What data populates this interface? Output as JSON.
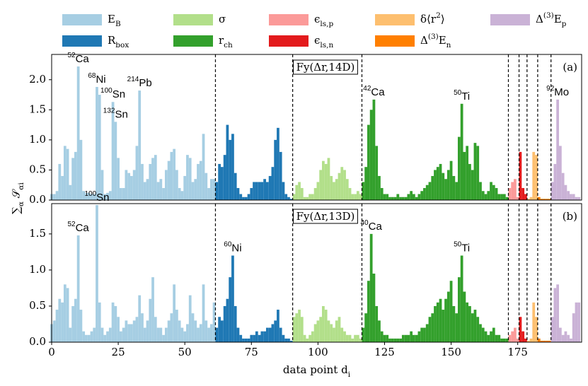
{
  "chart_data": [
    {
      "type": "bar",
      "title": "Fy(Δr,14D)",
      "panel_label": "(a)",
      "ylabel": "∑_{α} 𝒮_{αi}",
      "legend": true,
      "xlim": [
        0,
        199
      ],
      "ylim": [
        0,
        2.42
      ],
      "yticks": [
        {
          "value": 0,
          "label": "0.0"
        },
        {
          "value": 0.5,
          "label": "0.5"
        },
        {
          "value": 1,
          "label": "1.0"
        },
        {
          "value": 1.5,
          "label": "1.5"
        },
        {
          "value": 2,
          "label": "2.0"
        }
      ],
      "vlines": [
        61.5,
        90.5,
        116.5,
        171.5,
        175.5,
        178.5,
        182.5,
        187.5
      ],
      "series": [
        {
          "name": "E_{B}",
          "color": "#a6cee3",
          "x": [
            0,
            1,
            2,
            3,
            4,
            5,
            6,
            7,
            8,
            9,
            10,
            11,
            12,
            13,
            14,
            15,
            16,
            17,
            18,
            19,
            20,
            21,
            22,
            23,
            24,
            25,
            26,
            27,
            28,
            29,
            30,
            31,
            32,
            33,
            34,
            35,
            36,
            37,
            38,
            39,
            40,
            41,
            42,
            43,
            44,
            45,
            46,
            47,
            48,
            49,
            50,
            51,
            52,
            53,
            54,
            55,
            56,
            57,
            58,
            59,
            60,
            61
          ],
          "values": [
            0.1,
            0.1,
            0.15,
            0.6,
            0.4,
            0.9,
            0.85,
            0.25,
            0.7,
            0.8,
            2.22,
            1.0,
            0.15,
            0.12,
            0.12,
            0.1,
            0.1,
            1.88,
            1.75,
            0.5,
            0.1,
            0.12,
            0.15,
            1.63,
            1.3,
            0.7,
            0.2,
            0.2,
            0.5,
            0.45,
            0.4,
            0.5,
            0.9,
            1.82,
            0.6,
            0.3,
            0.35,
            0.6,
            0.7,
            0.75,
            0.3,
            0.35,
            0.2,
            0.5,
            0.65,
            0.8,
            0.85,
            0.5,
            0.2,
            0.15,
            0.4,
            0.75,
            0.7,
            0.3,
            0.35,
            0.6,
            0.65,
            1.1,
            0.45,
            0.2,
            0.35,
            0.35
          ]
        },
        {
          "name": "R_{box}",
          "color": "#1f78b4",
          "x": [
            62,
            63,
            64,
            65,
            66,
            67,
            68,
            69,
            70,
            71,
            72,
            73,
            74,
            75,
            76,
            77,
            78,
            79,
            80,
            81,
            82,
            83,
            84,
            85,
            86,
            87,
            88,
            89,
            90
          ],
          "values": [
            0.3,
            0.6,
            0.55,
            0.75,
            1.25,
            1.0,
            1.1,
            0.45,
            0.2,
            0.1,
            0.05,
            0.05,
            0.1,
            0.2,
            0.3,
            0.3,
            0.3,
            0.3,
            0.35,
            0.3,
            0.4,
            0.55,
            1.0,
            1.2,
            0.8,
            0.3,
            0.1,
            0.05,
            0.02
          ]
        },
        {
          "name": "σ",
          "color": "#b2df8a",
          "x": [
            91,
            92,
            93,
            94,
            95,
            96,
            97,
            98,
            99,
            100,
            101,
            102,
            103,
            104,
            105,
            106,
            107,
            108,
            109,
            110,
            111,
            112,
            113,
            114,
            115,
            116
          ],
          "values": [
            0.1,
            0.25,
            0.3,
            0.2,
            0.05,
            0.05,
            0.1,
            0.1,
            0.2,
            0.3,
            0.5,
            0.65,
            0.6,
            0.7,
            0.4,
            0.3,
            0.35,
            0.45,
            0.55,
            0.5,
            0.35,
            0.2,
            0.1,
            0.1,
            0.15,
            0.1
          ]
        },
        {
          "name": "r_{ch}",
          "color": "#33a02c",
          "x": [
            117,
            118,
            119,
            120,
            121,
            122,
            123,
            124,
            125,
            126,
            127,
            128,
            129,
            130,
            131,
            132,
            133,
            134,
            135,
            136,
            137,
            138,
            139,
            140,
            141,
            142,
            143,
            144,
            145,
            146,
            147,
            148,
            149,
            150,
            151,
            152,
            153,
            154,
            155,
            156,
            157,
            158,
            159,
            160,
            161,
            162,
            163,
            164,
            165,
            166,
            167,
            168,
            169,
            170,
            171
          ],
          "values": [
            0.3,
            0.55,
            1.25,
            1.5,
            1.67,
            0.9,
            0.4,
            0.2,
            0.1,
            0.1,
            0.05,
            0.05,
            0.05,
            0.1,
            0.05,
            0.05,
            0.05,
            0.1,
            0.15,
            0.1,
            0.05,
            0.1,
            0.15,
            0.2,
            0.25,
            0.3,
            0.4,
            0.5,
            0.55,
            0.6,
            0.45,
            0.35,
            0.5,
            0.65,
            0.4,
            0.3,
            1.05,
            1.6,
            0.8,
            0.9,
            0.6,
            0.5,
            0.95,
            0.9,
            0.3,
            0.15,
            0.1,
            0.15,
            0.3,
            0.25,
            0.2,
            0.1,
            0.1,
            0.1,
            0.05
          ]
        },
        {
          "name": "ϵ_{ls,p}",
          "color": "#fb9a99",
          "x": [
            172,
            173,
            174,
            175
          ],
          "values": [
            0.2,
            0.3,
            0.35,
            0.05
          ]
        },
        {
          "name": "ϵ_{ls,n}",
          "color": "#e31a1c",
          "x": [
            176,
            177,
            178
          ],
          "values": [
            0.8,
            0.2,
            0.1
          ]
        },
        {
          "name": "δ⟨r^{2}⟩",
          "color": "#fdbf6f",
          "x": [
            179,
            180,
            181,
            182
          ],
          "values": [
            0.02,
            0.05,
            0.8,
            0.75
          ]
        },
        {
          "name": "Δ^{(3)}E_{n}",
          "color": "#ff7f00",
          "x": [
            183,
            184,
            185,
            186,
            187
          ],
          "values": [
            0.05,
            0.02,
            0.02,
            0.02,
            0.02
          ]
        },
        {
          "name": "Δ^{(3)}E_{p}",
          "color": "#cab2d6",
          "x": [
            188,
            189,
            190,
            191,
            192,
            193,
            194,
            195,
            196,
            197,
            198
          ],
          "values": [
            0.3,
            0.6,
            1.67,
            0.9,
            0.45,
            0.25,
            0.15,
            0.1,
            0.1,
            0.05,
            0.05
          ]
        }
      ],
      "annotations": [
        {
          "mass": "52",
          "element": "Ca",
          "x": 10
        },
        {
          "mass": "68",
          "element": "Ni",
          "x": 17
        },
        {
          "mass": "100",
          "element": "Sn",
          "x": 23
        },
        {
          "mass": "132",
          "element": "Sn",
          "x": 24
        },
        {
          "mass": "214",
          "element": "Pb",
          "x": 33
        },
        {
          "mass": "42",
          "element": "Ca",
          "x": 121
        },
        {
          "mass": "50",
          "element": "Ti",
          "x": 154
        },
        {
          "mass": "92",
          "element": "Mo",
          "x": 190
        }
      ]
    },
    {
      "type": "bar",
      "title": "Fy(Δr,13D)",
      "panel_label": "(b)",
      "xlabel": "data point d_{i}",
      "xlim": [
        0,
        199
      ],
      "ylim": [
        0,
        1.92
      ],
      "xticks": [
        0,
        25,
        50,
        75,
        100,
        125,
        150,
        175
      ],
      "yticks": [
        {
          "value": 0,
          "label": "0.0"
        },
        {
          "value": 0.5,
          "label": "0.5"
        },
        {
          "value": 1,
          "label": "1.0"
        },
        {
          "value": 1.5,
          "label": "1.5"
        }
      ],
      "vlines": [
        61.5,
        90.5,
        116.5,
        171.5,
        175.5,
        178.5,
        182.5,
        187.5
      ],
      "series": [
        {
          "name": "E_{B}",
          "color": "#a6cee3",
          "x": [
            0,
            1,
            2,
            3,
            4,
            5,
            6,
            7,
            8,
            9,
            10,
            11,
            12,
            13,
            14,
            15,
            16,
            17,
            18,
            19,
            20,
            21,
            22,
            23,
            24,
            25,
            26,
            27,
            28,
            29,
            30,
            31,
            32,
            33,
            34,
            35,
            36,
            37,
            38,
            39,
            40,
            41,
            42,
            43,
            44,
            45,
            46,
            47,
            48,
            49,
            50,
            51,
            52,
            53,
            54,
            55,
            56,
            57,
            58,
            59,
            60,
            61
          ],
          "values": [
            0.25,
            0.3,
            0.45,
            0.6,
            0.55,
            0.8,
            0.75,
            0.2,
            0.5,
            0.6,
            1.48,
            0.45,
            0.15,
            0.1,
            0.1,
            0.15,
            0.2,
            1.9,
            0.55,
            0.2,
            0.1,
            0.15,
            0.2,
            0.55,
            0.5,
            0.35,
            0.15,
            0.2,
            0.3,
            0.25,
            0.25,
            0.3,
            0.35,
            0.65,
            0.4,
            0.2,
            0.3,
            0.6,
            0.9,
            0.35,
            0.2,
            0.2,
            0.1,
            0.2,
            0.3,
            0.4,
            0.8,
            0.45,
            0.3,
            0.2,
            0.15,
            0.25,
            0.65,
            0.4,
            0.3,
            0.2,
            0.25,
            0.8,
            0.3,
            0.2,
            0.25,
            0.55
          ]
        },
        {
          "name": "R_{box}",
          "color": "#1f78b4",
          "x": [
            62,
            63,
            64,
            65,
            66,
            67,
            68,
            69,
            70,
            71,
            72,
            73,
            74,
            75,
            76,
            77,
            78,
            79,
            80,
            81,
            82,
            83,
            84,
            85,
            86,
            87,
            88,
            89,
            90
          ],
          "values": [
            0.2,
            0.35,
            0.3,
            0.5,
            0.6,
            0.9,
            1.2,
            0.5,
            0.2,
            0.1,
            0.05,
            0.05,
            0.05,
            0.1,
            0.1,
            0.15,
            0.1,
            0.15,
            0.15,
            0.2,
            0.2,
            0.25,
            0.3,
            0.45,
            0.2,
            0.1,
            0.05,
            0.05,
            0.02
          ]
        },
        {
          "name": "σ",
          "color": "#b2df8a",
          "x": [
            91,
            92,
            93,
            94,
            95,
            96,
            97,
            98,
            99,
            100,
            101,
            102,
            103,
            104,
            105,
            106,
            107,
            108,
            109,
            110,
            111,
            112,
            113,
            114,
            115,
            116
          ],
          "values": [
            0.35,
            0.4,
            0.45,
            0.35,
            0.1,
            0.05,
            0.1,
            0.15,
            0.25,
            0.3,
            0.35,
            0.5,
            0.45,
            0.3,
            0.25,
            0.2,
            0.3,
            0.35,
            0.2,
            0.15,
            0.1,
            0.1,
            0.05,
            0.1,
            0.1,
            0.05
          ]
        },
        {
          "name": "r_{ch}",
          "color": "#33a02c",
          "x": [
            117,
            118,
            119,
            120,
            121,
            122,
            123,
            124,
            125,
            126,
            127,
            128,
            129,
            130,
            131,
            132,
            133,
            134,
            135,
            136,
            137,
            138,
            139,
            140,
            141,
            142,
            143,
            144,
            145,
            146,
            147,
            148,
            149,
            150,
            151,
            152,
            153,
            154,
            155,
            156,
            157,
            158,
            159,
            160,
            161,
            162,
            163,
            164,
            165,
            166,
            167,
            168,
            169,
            170,
            171
          ],
          "values": [
            0.2,
            0.4,
            0.85,
            1.5,
            0.95,
            0.5,
            0.3,
            0.15,
            0.1,
            0.1,
            0.05,
            0.05,
            0.05,
            0.05,
            0.05,
            0.1,
            0.1,
            0.1,
            0.15,
            0.1,
            0.1,
            0.15,
            0.2,
            0.2,
            0.25,
            0.35,
            0.4,
            0.5,
            0.55,
            0.6,
            0.45,
            0.6,
            0.7,
            0.85,
            0.5,
            0.4,
            0.9,
            1.2,
            0.7,
            0.55,
            0.5,
            0.4,
            0.45,
            0.35,
            0.25,
            0.2,
            0.15,
            0.1,
            0.15,
            0.2,
            0.1,
            0.1,
            0.05,
            0.05,
            0.05
          ]
        },
        {
          "name": "ϵ_{ls,p}",
          "color": "#fb9a99",
          "x": [
            172,
            173,
            174,
            175
          ],
          "values": [
            0.1,
            0.15,
            0.2,
            0.05
          ]
        },
        {
          "name": "ϵ_{ls,n}",
          "color": "#e31a1c",
          "x": [
            176,
            177,
            178
          ],
          "values": [
            0.35,
            0.15,
            0.05
          ]
        },
        {
          "name": "δ⟨r^{2}⟩",
          "color": "#fdbf6f",
          "x": [
            179,
            180,
            181,
            182
          ],
          "values": [
            0.02,
            0.05,
            0.55,
            0.35
          ]
        },
        {
          "name": "Δ^{(3)}E_{n}",
          "color": "#ff7f00",
          "x": [
            183,
            184,
            185,
            186,
            187
          ],
          "values": [
            0.05,
            0.02,
            0.02,
            0.02,
            0.02
          ]
        },
        {
          "name": "Δ^{(3)}E_{p}",
          "color": "#cab2d6",
          "x": [
            188,
            189,
            190,
            191,
            192,
            193,
            194,
            195,
            196,
            197,
            198
          ],
          "values": [
            0.35,
            0.75,
            0.8,
            0.2,
            0.1,
            0.15,
            0.1,
            0.05,
            0.4,
            0.55,
            0.55
          ]
        }
      ],
      "annotations": [
        {
          "mass": "52",
          "element": "Ca",
          "x": 10
        },
        {
          "mass": "100",
          "element": "Sn",
          "x": 17
        },
        {
          "mass": "60",
          "element": "Ni",
          "x": 68
        },
        {
          "mass": "40",
          "element": "Ca",
          "x": 120
        },
        {
          "mass": "50",
          "element": "Ti",
          "x": 154
        }
      ]
    }
  ]
}
